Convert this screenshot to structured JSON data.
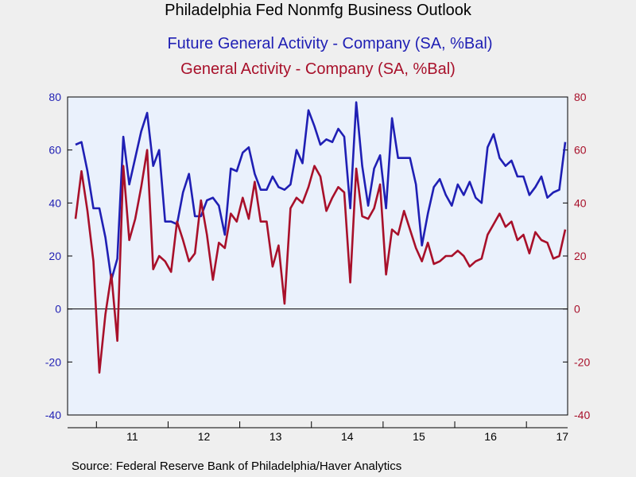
{
  "chart_data": {
    "type": "line",
    "title": "Philadelphia Fed Nonmfg Business Outlook",
    "source": "Source:  Federal Reserve Bank of Philadelphia/Haver Analytics",
    "ylim": [
      -40,
      80
    ],
    "y_ticks": [
      "80",
      "60",
      "40",
      "20",
      "0",
      "-20",
      "-40"
    ],
    "y_tick_values": [
      80,
      60,
      40,
      20,
      0,
      -20,
      -40
    ],
    "x_labels": [
      "11",
      "12",
      "13",
      "14",
      "15",
      "16",
      "17"
    ],
    "x_start": "2010-09",
    "grid": false,
    "series": [
      {
        "name": "Future General Activity - Company (SA, %Bal)",
        "color": "#1f1fb4",
        "values": [
          62,
          63,
          52,
          38,
          38,
          27,
          11,
          19,
          65,
          47,
          57,
          67,
          74,
          54,
          60,
          33,
          33,
          32,
          44,
          51,
          35,
          35,
          41,
          42,
          39,
          28,
          53,
          52,
          59,
          61,
          51,
          45,
          45,
          50,
          46,
          45,
          47,
          60,
          55,
          75,
          69,
          62,
          64,
          63,
          68,
          65,
          38,
          78,
          54,
          39,
          53,
          58,
          38,
          72,
          57,
          57,
          57,
          47,
          24,
          36,
          46,
          49,
          43,
          39,
          47,
          43,
          48,
          42,
          40,
          61,
          66,
          57,
          54,
          56,
          50,
          50,
          43,
          46,
          50,
          42,
          44,
          45,
          63
        ]
      },
      {
        "name": "General Activity - Company (SA, %Bal)",
        "color": "#a8102a",
        "values": [
          34,
          52,
          37,
          18,
          -24,
          -2,
          13,
          -12,
          54,
          26,
          34,
          46,
          60,
          15,
          20,
          18,
          14,
          33,
          26,
          18,
          21,
          41,
          28,
          11,
          25,
          23,
          36,
          33,
          42,
          34,
          48,
          33,
          33,
          16,
          24,
          2,
          38,
          42,
          40,
          46,
          54,
          50,
          37,
          42,
          46,
          44,
          10,
          53,
          35,
          34,
          38,
          47,
          13,
          30,
          28,
          37,
          30,
          23,
          18,
          25,
          17,
          18,
          20,
          20,
          22,
          20,
          16,
          18,
          19,
          28,
          32,
          36,
          31,
          33,
          26,
          28,
          21,
          29,
          26,
          25,
          19,
          20,
          30
        ]
      }
    ]
  }
}
